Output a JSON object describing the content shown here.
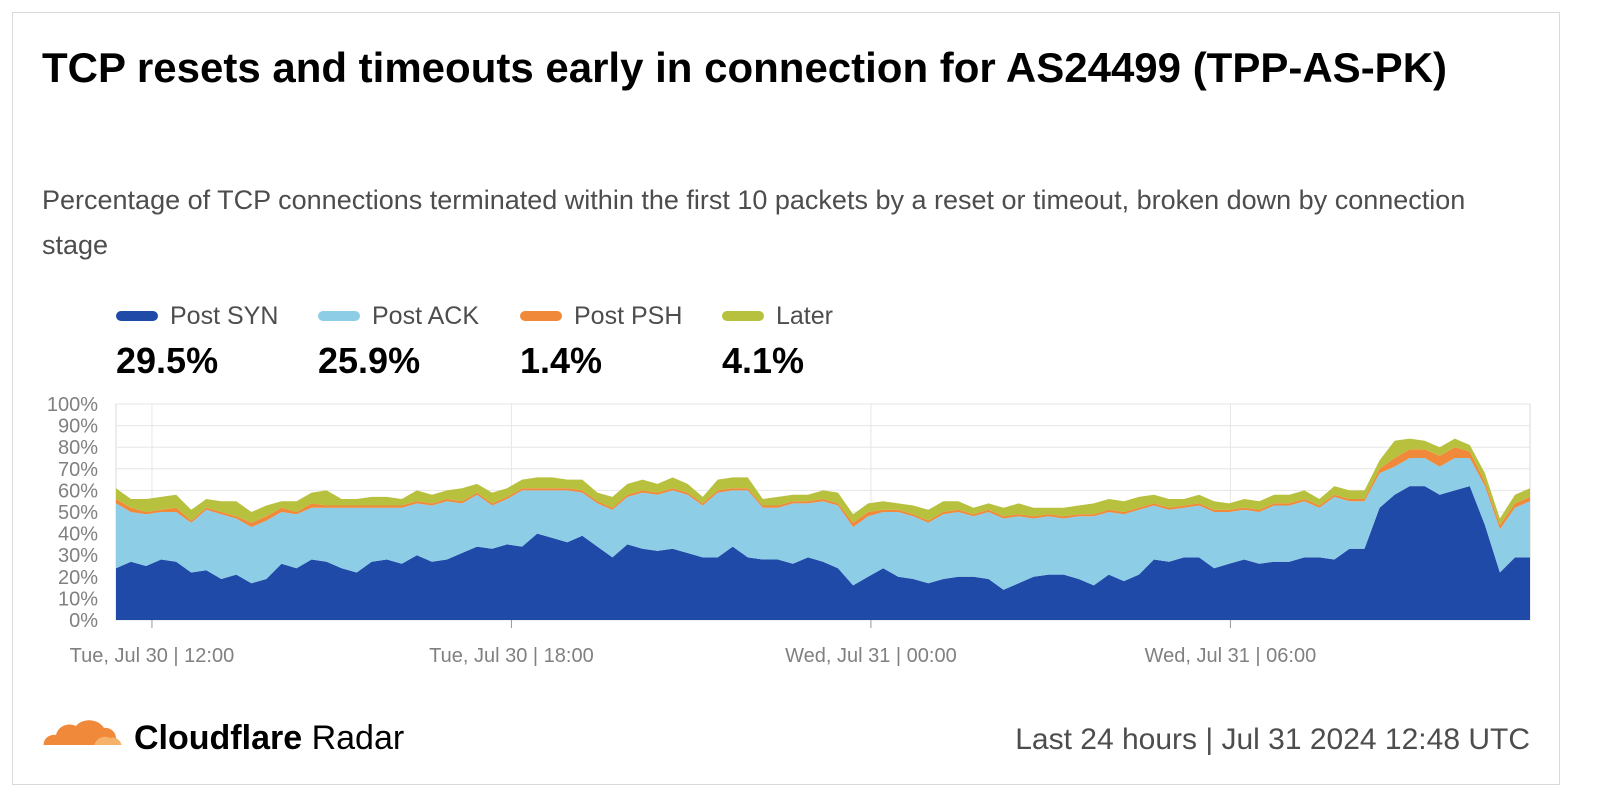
{
  "title": "TCP resets and timeouts early in connection for AS24499 (TPP-AS-PK)",
  "subtitle": "Percentage of TCP connections terminated within the first 10 packets by a reset or timeout, broken down by connection stage",
  "legend": [
    {
      "name": "Post SYN",
      "value": "29.5%",
      "color": "#1f4aa8"
    },
    {
      "name": "Post ACK",
      "value": "25.9%",
      "color": "#8ecde6"
    },
    {
      "name": "Post PSH",
      "value": "1.4%",
      "color": "#f0893a"
    },
    {
      "name": "Later",
      "value": "4.1%",
      "color": "#b8c13e"
    }
  ],
  "footer": {
    "brand_bold": "Cloudflare",
    "brand_regular": "Radar",
    "right_text": "Last 24 hours | Jul 31 2024 12:48 UTC",
    "logo_icon": "cloudflare-cloud-icon"
  },
  "chart_data": {
    "type": "area",
    "stacked": true,
    "ylim": [
      0,
      100
    ],
    "yticks": [
      "0%",
      "10%",
      "20%",
      "30%",
      "40%",
      "50%",
      "60%",
      "70%",
      "80%",
      "90%",
      "100%"
    ],
    "xlim_hours": [
      11.4,
      35.0
    ],
    "xticks": [
      {
        "label": "Tue, Jul 30 | 12:00",
        "hour": 12
      },
      {
        "label": "Tue, Jul 30 | 18:00",
        "hour": 18
      },
      {
        "label": "Wed, Jul 31 | 00:00",
        "hour": 24
      },
      {
        "label": "Wed, Jul 31 | 06:00",
        "hour": 30
      }
    ],
    "grid": true,
    "legend_position": "top-left",
    "series": [
      {
        "name": "Post SYN",
        "color": "#1f4aa8",
        "values": [
          24,
          27,
          25,
          28,
          27,
          22,
          23,
          19,
          21,
          17,
          19,
          26,
          24,
          28,
          27,
          24,
          22,
          27,
          28,
          26,
          30,
          27,
          28,
          31,
          34,
          33,
          35,
          34,
          40,
          38,
          36,
          39,
          34,
          29,
          35,
          33,
          32,
          33,
          31,
          29,
          29,
          34,
          29,
          28,
          28,
          26,
          29,
          27,
          24,
          16,
          20,
          24,
          20,
          19,
          17,
          19,
          20,
          20,
          19,
          14,
          17,
          20,
          21,
          21,
          19,
          16,
          21,
          18,
          21,
          28,
          27,
          29,
          29,
          24,
          26,
          28,
          26,
          27,
          27,
          29,
          29,
          28,
          33,
          33,
          52,
          58,
          62,
          62,
          58,
          60,
          62,
          44,
          22,
          29,
          29
        ]
      },
      {
        "name": "Post ACK",
        "color": "#8ecde6",
        "values": [
          30,
          23,
          24,
          22,
          23,
          23,
          28,
          30,
          26,
          26,
          27,
          24,
          25,
          24,
          25,
          28,
          30,
          25,
          24,
          26,
          24,
          26,
          27,
          23,
          24,
          20,
          21,
          26,
          20,
          22,
          24,
          20,
          20,
          22,
          22,
          26,
          26,
          27,
          27,
          24,
          30,
          26,
          31,
          24,
          24,
          28,
          25,
          28,
          29,
          27,
          28,
          26,
          30,
          29,
          28,
          30,
          30,
          28,
          31,
          33,
          31,
          27,
          27,
          26,
          29,
          32,
          29,
          31,
          30,
          25,
          24,
          23,
          24,
          26,
          24,
          23,
          24,
          26,
          26,
          26,
          23,
          29,
          22,
          22,
          16,
          13,
          13,
          13,
          13,
          15,
          13,
          18,
          20,
          23,
          26
        ]
      },
      {
        "name": "Post PSH",
        "color": "#f0893a",
        "values": [
          2,
          2,
          1,
          1,
          2,
          1,
          1,
          1,
          1,
          2,
          2,
          2,
          1,
          2,
          1,
          1,
          1,
          1,
          1,
          1,
          1,
          1,
          1,
          1,
          1,
          1,
          1,
          1,
          1,
          1,
          1,
          1,
          1,
          1,
          1,
          1,
          1,
          1,
          1,
          1,
          1,
          1,
          1,
          1,
          1,
          1,
          1,
          1,
          1,
          2,
          2,
          1,
          1,
          1,
          1,
          1,
          1,
          1,
          1,
          1,
          1,
          1,
          1,
          1,
          1,
          1,
          1,
          1,
          1,
          1,
          1,
          1,
          1,
          1,
          1,
          1,
          1,
          1,
          1,
          1,
          1,
          1,
          1,
          1,
          2,
          4,
          4,
          4,
          5,
          5,
          3,
          2,
          2,
          2,
          2
        ]
      },
      {
        "name": "Later",
        "color": "#b8c13e",
        "values": [
          5,
          4,
          6,
          6,
          6,
          5,
          4,
          5,
          7,
          5,
          5,
          3,
          5,
          5,
          7,
          3,
          3,
          4,
          4,
          3,
          5,
          4,
          4,
          6,
          4,
          5,
          4,
          4,
          5,
          5,
          4,
          5,
          4,
          5,
          5,
          5,
          4,
          5,
          4,
          3,
          5,
          5,
          5,
          3,
          4,
          3,
          3,
          4,
          5,
          4,
          4,
          4,
          3,
          4,
          5,
          5,
          4,
          3,
          3,
          4,
          5,
          4,
          3,
          4,
          4,
          5,
          5,
          5,
          5,
          4,
          4,
          3,
          4,
          4,
          3,
          4,
          4,
          4,
          4,
          4,
          3,
          4,
          4,
          4,
          4,
          8,
          5,
          4,
          4,
          4,
          3,
          4,
          3,
          4,
          4
        ]
      }
    ]
  }
}
